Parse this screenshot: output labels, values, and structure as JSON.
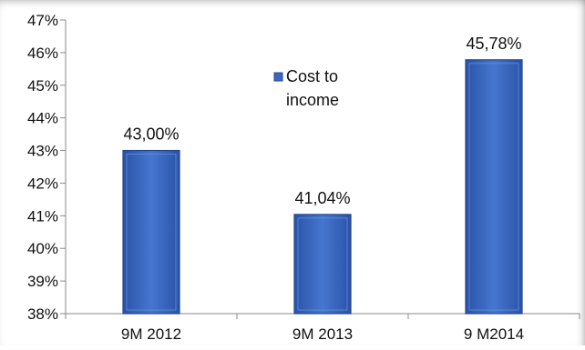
{
  "chart_data": {
    "type": "bar",
    "categories": [
      "9M 2012",
      "9M 2013",
      "9 M2014"
    ],
    "series": [
      {
        "name": "Cost to income",
        "values": [
          43.0,
          41.04,
          45.78
        ],
        "color": "#3a68c0"
      }
    ],
    "data_labels": [
      "43,00%",
      "41,04%",
      "45,78%"
    ],
    "ylim": [
      38,
      47
    ],
    "yticks": [
      "38%",
      "39%",
      "40%",
      "41%",
      "42%",
      "43%",
      "44%",
      "45%",
      "46%",
      "47%"
    ],
    "ytick_values": [
      38,
      39,
      40,
      41,
      42,
      43,
      44,
      45,
      46,
      47
    ],
    "legend": {
      "placement": "top-center",
      "lines": [
        "Cost to",
        "income"
      ]
    },
    "grid": false,
    "title": "",
    "xlabel": "",
    "ylabel": ""
  }
}
